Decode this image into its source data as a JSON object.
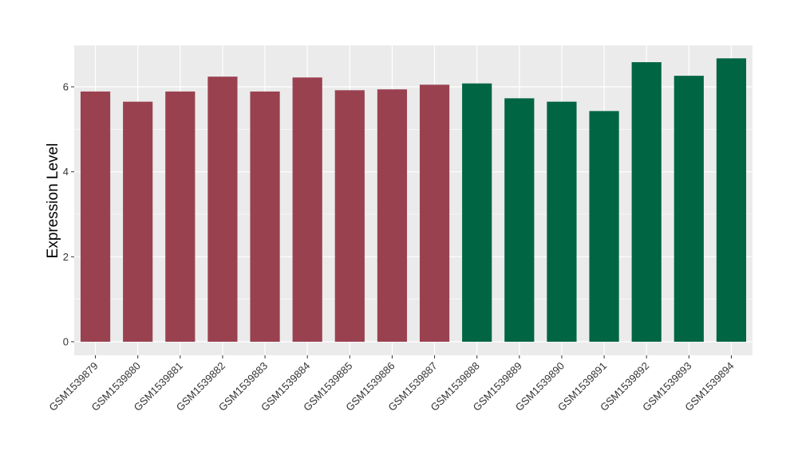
{
  "chart_data": {
    "type": "bar",
    "title": "",
    "xlabel": "",
    "ylabel": "Expression Level",
    "categories": [
      "GSM1539879",
      "GSM1539880",
      "GSM1539881",
      "GSM1539882",
      "GSM1539883",
      "GSM1539884",
      "GSM1539885",
      "GSM1539886",
      "GSM1539887",
      "GSM1539888",
      "GSM1539889",
      "GSM1539890",
      "GSM1539891",
      "GSM1539892",
      "GSM1539893",
      "GSM1539894"
    ],
    "values": [
      5.89,
      5.65,
      5.89,
      6.24,
      5.89,
      6.22,
      5.92,
      5.94,
      6.05,
      6.08,
      5.73,
      5.65,
      5.43,
      6.58,
      6.26,
      6.67
    ],
    "bar_colors": [
      "#9a4150",
      "#9a4150",
      "#9a4150",
      "#9a4150",
      "#9a4150",
      "#9a4150",
      "#9a4150",
      "#9a4150",
      "#9a4150",
      "#006543",
      "#006543",
      "#006543",
      "#006543",
      "#006543",
      "#006543",
      "#006543"
    ],
    "ylim": [
      -0.3,
      7.0
    ],
    "yticks": [
      0,
      2,
      4,
      6
    ],
    "ytick_labels": [
      "0",
      "2",
      "4",
      "6"
    ],
    "grid": true,
    "panel_background": "#ebebeb",
    "grid_color": "#ffffff"
  }
}
